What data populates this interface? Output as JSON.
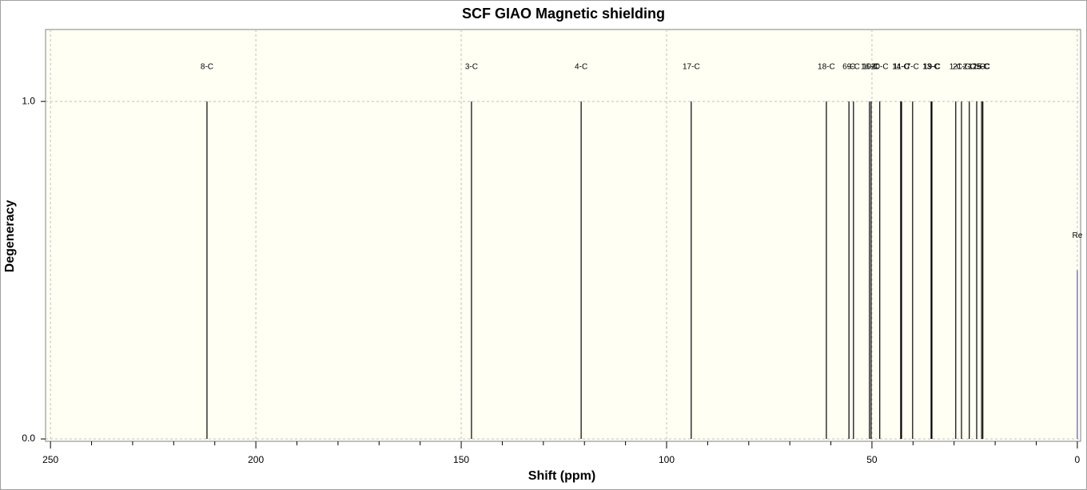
{
  "chart_data": {
    "type": "stick",
    "title": "SCF GIAO Magnetic shielding",
    "x_label": "Shift (ppm)",
    "y_label": "Degeneracy",
    "x": [
      211.9,
      147.5,
      120.8,
      94.0,
      61.1,
      55.6,
      54.5,
      50.6,
      50.2,
      48.1,
      43.0,
      42.8,
      40.1,
      35.6,
      35.4,
      29.6,
      28.2,
      26.3,
      24.5,
      23.3,
      23.0
    ],
    "values": [
      1,
      1,
      1,
      1,
      1,
      1,
      1,
      1,
      1,
      1,
      1,
      1,
      1,
      1,
      1,
      1,
      1,
      1,
      1,
      1,
      1
    ],
    "labels": [
      "8-C",
      "3-C",
      "4-C",
      "17-C",
      "18-C",
      "6-C",
      "9-C",
      "16-C",
      "10-C",
      "20-C",
      "14-C",
      "11-C",
      "7-C",
      "13-C",
      "19-C",
      "1-C",
      "21-C",
      "2-C",
      "12-C",
      "15-C",
      "5-C"
    ],
    "color": "#000000",
    "reference": {
      "label": "Re",
      "x": 0,
      "value": 0.5,
      "color": "#5a5aa8"
    },
    "xlim": [
      251.2,
      -0.8
    ],
    "ylim": [
      -0.007,
      1.213
    ],
    "xticks": [
      250,
      200,
      150,
      100,
      50,
      0
    ],
    "xminor_ticks": [
      240,
      230,
      220,
      210,
      190,
      180,
      170,
      160,
      140,
      130,
      120,
      110,
      90,
      80,
      70,
      60,
      40,
      30,
      20,
      10
    ],
    "yticks": [
      {
        "value": 0,
        "label": "0.0"
      },
      {
        "value": 1,
        "label": "1.0"
      }
    ],
    "grid": true
  }
}
